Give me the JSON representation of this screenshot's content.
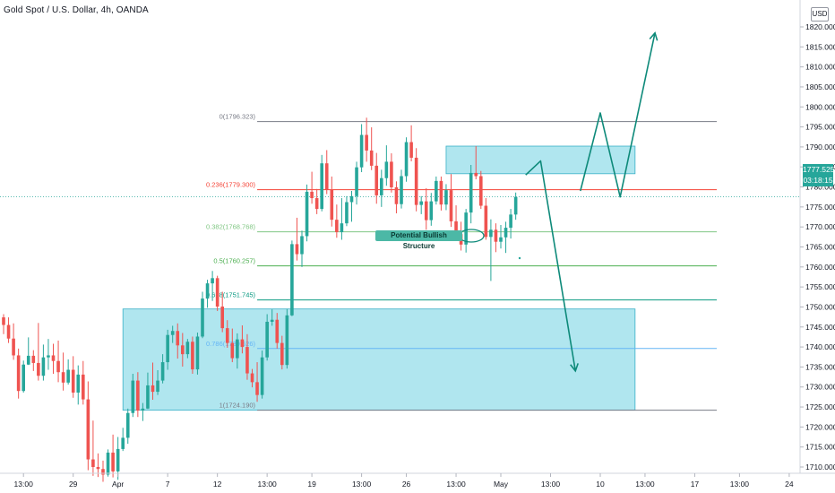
{
  "header": {
    "title": "Gold Spot / U.S. Dollar, 4h, OANDA",
    "currency": "USD"
  },
  "price_tag": {
    "price": "1777.525",
    "countdown": "03:18:15"
  },
  "annotation": "Potential Bullish Structure",
  "colors": {
    "up": "#26a69a",
    "down": "#ef5350",
    "zone": "#86d8e6",
    "arrow": "#0e8a7a",
    "fib_level_0": "#787b86",
    "fib_level_0236": "#f44336",
    "fib_level_0382": "#81c784",
    "fib_level_05": "#4caf50",
    "fib_level_0618": "#089981",
    "fib_level_0786": "#64b5f6",
    "fib_level_1": "#787b86"
  },
  "chart_data": {
    "type": "candlestick",
    "title": "Gold Spot / U.S. Dollar, 4h, OANDA",
    "y_axis": {
      "ticks": [
        1710,
        1715,
        1720,
        1725,
        1730,
        1735,
        1740,
        1745,
        1750,
        1755,
        1760,
        1765,
        1770,
        1775,
        1780,
        1785,
        1790,
        1795,
        1800,
        1805,
        1810,
        1815,
        1820
      ],
      "tick_labels": [
        "1710.000",
        "1715.000",
        "1720.000",
        "1725.000",
        "1730.000",
        "1735.000",
        "1740.000",
        "1745.000",
        "1750.000",
        "1755.000",
        "1760.000",
        "1765.000",
        "1770.000",
        "1775.000",
        "1780.000",
        "1785.000",
        "1790.000",
        "1795.000",
        "1800.000",
        "1805.000",
        "1810.000",
        "1815.000",
        "1820.000"
      ],
      "range": [
        1707,
        1821
      ]
    },
    "x_axis": {
      "tick_labels": [
        "13:00",
        "29",
        "Apr",
        "7",
        "12",
        "13:00",
        "19",
        "13:00",
        "26",
        "13:00",
        "May",
        "13:00",
        "10",
        "13:00",
        "17",
        "13:00",
        "24"
      ],
      "tick_bars": [
        4,
        14,
        23,
        33,
        43,
        53,
        62,
        72,
        81,
        91,
        100,
        110,
        120,
        129,
        139,
        148,
        158
      ]
    },
    "fib_retracement": [
      {
        "ratio": "0",
        "label": "0(1796.323)",
        "price": 1796.323
      },
      {
        "ratio": "0.236",
        "label": "0.236(1779.300)",
        "price": 1779.3
      },
      {
        "ratio": "0.382",
        "label": "0.382(1768.768)",
        "price": 1768.768
      },
      {
        "ratio": "0.5",
        "label": "0.5(1760.257)",
        "price": 1760.257
      },
      {
        "ratio": "0.618",
        "label": "0.618(1751.745)",
        "price": 1751.745
      },
      {
        "ratio": "0.786",
        "label": "0.786(1739.626)",
        "price": 1739.626
      },
      {
        "ratio": "1",
        "label": "1(1724.190)",
        "price": 1724.19
      }
    ],
    "current_price": 1777.525,
    "zones": [
      {
        "bar_start": 24,
        "bar_end": 127,
        "price_top": 1749.5,
        "price_bottom": 1724.2
      },
      {
        "bar_start": 89,
        "bar_end": 127,
        "price_top": 1790.2,
        "price_bottom": 1783.3
      }
    ],
    "projections": [
      {
        "points": [
          [
            105,
            1783
          ],
          [
            108,
            1786.5
          ],
          [
            115,
            1734
          ]
        ]
      },
      {
        "points": [
          [
            116,
            1779
          ],
          [
            120,
            1798.5
          ],
          [
            124,
            1777.5
          ],
          [
            131,
            1818.5
          ]
        ]
      }
    ],
    "candles": [
      [
        1747.4,
        1748.2,
        1743.2,
        1745.5
      ],
      [
        1745.5,
        1747.4,
        1741.0,
        1742.1
      ],
      [
        1742.1,
        1745.9,
        1736.8,
        1737.9
      ],
      [
        1737.9,
        1739.6,
        1727.1,
        1729.0
      ],
      [
        1729.0,
        1736.6,
        1728.6,
        1735.6
      ],
      [
        1735.6,
        1742.4,
        1735.5,
        1737.8
      ],
      [
        1737.8,
        1739.2,
        1734.0,
        1736.0
      ],
      [
        1736.0,
        1746.0,
        1731.6,
        1732.8
      ],
      [
        1732.8,
        1740.6,
        1731.6,
        1737.4
      ],
      [
        1737.4,
        1742.0,
        1734.3,
        1737.9
      ],
      [
        1737.9,
        1740.8,
        1733.3,
        1736.5
      ],
      [
        1736.5,
        1741.6,
        1731.2,
        1733.7
      ],
      [
        1733.7,
        1738.6,
        1729.1,
        1731.1
      ],
      [
        1731.1,
        1736.9,
        1730.6,
        1734.3
      ],
      [
        1734.3,
        1737.7,
        1727.3,
        1728.6
      ],
      [
        1728.6,
        1735.4,
        1725.6,
        1733.1
      ],
      [
        1733.1,
        1736.5,
        1725.6,
        1726.9
      ],
      [
        1726.9,
        1731.4,
        1709.2,
        1711.9
      ],
      [
        1711.9,
        1721.6,
        1707.8,
        1710.0
      ],
      [
        1710.0,
        1713.4,
        1707.5,
        1709.5
      ],
      [
        1709.5,
        1711.6,
        1706.3,
        1708.1
      ],
      [
        1708.1,
        1714.4,
        1707.6,
        1713.6
      ],
      [
        1713.6,
        1718.1,
        1707.4,
        1708.9
      ],
      [
        1708.9,
        1717.5,
        1706.8,
        1714.5
      ],
      [
        1714.5,
        1719.8,
        1714.0,
        1717.3
      ],
      [
        1717.3,
        1724.6,
        1715.8,
        1723.5
      ],
      [
        1723.5,
        1733.3,
        1722.5,
        1731.6
      ],
      [
        1731.6,
        1733.7,
        1722.5,
        1724.1
      ],
      [
        1724.1,
        1726.0,
        1721.5,
        1724.6
      ],
      [
        1724.6,
        1733.6,
        1724.5,
        1730.4
      ],
      [
        1730.4,
        1736.1,
        1726.8,
        1728.8
      ],
      [
        1728.8,
        1734.2,
        1728.0,
        1731.6
      ],
      [
        1731.6,
        1738.2,
        1730.9,
        1736.2
      ],
      [
        1736.2,
        1744.3,
        1734.3,
        1743.0
      ],
      [
        1743.0,
        1745.3,
        1741.0,
        1744.0
      ],
      [
        1744.0,
        1745.9,
        1737.1,
        1740.4
      ],
      [
        1740.4,
        1743.5,
        1735.1,
        1738.2
      ],
      [
        1738.2,
        1742.0,
        1737.2,
        1741.3
      ],
      [
        1741.3,
        1742.6,
        1733.3,
        1734.4
      ],
      [
        1734.4,
        1743.6,
        1733.1,
        1742.6
      ],
      [
        1742.6,
        1753.8,
        1742.2,
        1752.1
      ],
      [
        1752.1,
        1756.8,
        1749.8,
        1755.9
      ],
      [
        1755.9,
        1759.0,
        1751.5,
        1757.2
      ],
      [
        1757.2,
        1757.8,
        1749.0,
        1750.1
      ],
      [
        1750.1,
        1753.8,
        1743.7,
        1744.7
      ],
      [
        1744.7,
        1746.7,
        1739.8,
        1741.0
      ],
      [
        1741.0,
        1744.6,
        1736.2,
        1737.2
      ],
      [
        1737.2,
        1743.4,
        1734.6,
        1741.9
      ],
      [
        1741.9,
        1745.4,
        1738.4,
        1740.0
      ],
      [
        1740.0,
        1743.2,
        1731.8,
        1733.4
      ],
      [
        1733.4,
        1734.5,
        1729.9,
        1731.2
      ],
      [
        1731.2,
        1736.2,
        1726.3,
        1728.0
      ],
      [
        1728.0,
        1739.1,
        1727.1,
        1737.4
      ],
      [
        1737.4,
        1748.2,
        1736.6,
        1746.3
      ],
      [
        1746.3,
        1749.4,
        1745.3,
        1746.8
      ],
      [
        1746.8,
        1748.5,
        1739.6,
        1741.0
      ],
      [
        1741.0,
        1742.8,
        1734.4,
        1735.5
      ],
      [
        1735.5,
        1749.5,
        1734.6,
        1747.9
      ],
      [
        1747.9,
        1766.6,
        1747.7,
        1765.7
      ],
      [
        1765.7,
        1772.3,
        1761.6,
        1763.2
      ],
      [
        1763.2,
        1769.1,
        1760.0,
        1767.7
      ],
      [
        1767.7,
        1780.6,
        1766.4,
        1778.8
      ],
      [
        1778.8,
        1783.8,
        1775.8,
        1777.2
      ],
      [
        1777.2,
        1779.5,
        1773.2,
        1774.5
      ],
      [
        1774.5,
        1788.0,
        1773.9,
        1785.9
      ],
      [
        1785.9,
        1789.2,
        1778.2,
        1779.3
      ],
      [
        1779.3,
        1782.6,
        1770.1,
        1771.8
      ],
      [
        1771.8,
        1775.6,
        1767.3,
        1768.7
      ],
      [
        1768.7,
        1777.2,
        1766.8,
        1770.9
      ],
      [
        1770.9,
        1777.7,
        1770.2,
        1776.2
      ],
      [
        1776.2,
        1779.0,
        1771.3,
        1777.7
      ],
      [
        1777.7,
        1786.3,
        1775.6,
        1784.9
      ],
      [
        1784.9,
        1795.7,
        1783.7,
        1793.0
      ],
      [
        1793.0,
        1797.3,
        1786.3,
        1789.1
      ],
      [
        1789.1,
        1794.9,
        1784.2,
        1785.3
      ],
      [
        1785.3,
        1788.5,
        1775.8,
        1777.9
      ],
      [
        1777.9,
        1784.3,
        1775.0,
        1782.2
      ],
      [
        1782.2,
        1790.4,
        1780.3,
        1786.3
      ],
      [
        1786.3,
        1788.4,
        1778.6,
        1779.9
      ],
      [
        1779.9,
        1781.4,
        1773.4,
        1775.7
      ],
      [
        1775.7,
        1784.3,
        1774.6,
        1782.7
      ],
      [
        1782.7,
        1792.4,
        1781.3,
        1791.2
      ],
      [
        1791.2,
        1795.4,
        1786.4,
        1787.3
      ],
      [
        1787.3,
        1789.7,
        1773.9,
        1775.5
      ],
      [
        1775.5,
        1777.7,
        1773.2,
        1776.4
      ],
      [
        1776.4,
        1779.7,
        1769.3,
        1771.7
      ],
      [
        1771.7,
        1778.5,
        1770.3,
        1776.4
      ],
      [
        1776.4,
        1782.6,
        1775.6,
        1781.5
      ],
      [
        1781.5,
        1782.6,
        1774.1,
        1775.6
      ],
      [
        1775.6,
        1780.7,
        1774.2,
        1779.2
      ],
      [
        1779.2,
        1783.2,
        1770.0,
        1771.4
      ],
      [
        1771.4,
        1775.4,
        1766.6,
        1768.2
      ],
      [
        1768.2,
        1771.3,
        1764.1,
        1765.6
      ],
      [
        1765.6,
        1774.5,
        1763.6,
        1773.6
      ],
      [
        1773.6,
        1785.5,
        1770.9,
        1783.5
      ],
      [
        1783.5,
        1790.2,
        1781.9,
        1782.7
      ],
      [
        1782.7,
        1784.0,
        1774.5,
        1775.3
      ],
      [
        1775.3,
        1777.2,
        1766.8,
        1767.5
      ],
      [
        1767.5,
        1771.9,
        1756.5,
        1769.3
      ],
      [
        1769.3,
        1770.9,
        1763.7,
        1766.3
      ],
      [
        1766.3,
        1770.5,
        1764.6,
        1767.4
      ],
      [
        1767.4,
        1771.3,
        1763.5,
        1769.8
      ],
      [
        1769.8,
        1774.5,
        1767.1,
        1773.1
      ],
      [
        1773.1,
        1778.6,
        1771.8,
        1777.5
      ]
    ]
  }
}
